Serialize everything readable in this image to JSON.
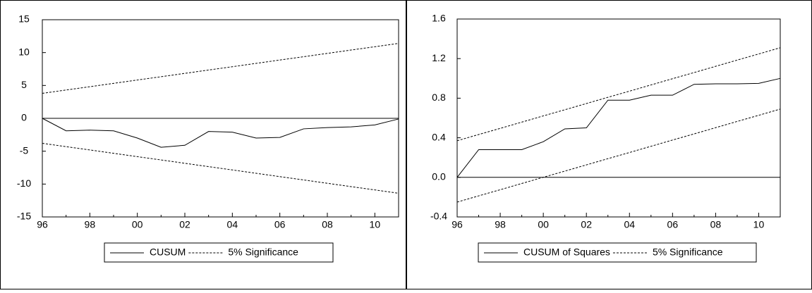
{
  "chart_data": [
    {
      "type": "line",
      "categories": [
        "96",
        null,
        "98",
        null,
        "00",
        null,
        "02",
        null,
        "04",
        null,
        "06",
        null,
        "08",
        null,
        "10",
        null
      ],
      "series": [
        {
          "name": "CUSUM",
          "color": "#000000",
          "style": "solid",
          "values": [
            0,
            -1.9,
            -1.8,
            -1.9,
            -3.0,
            -4.4,
            -4.1,
            -2.0,
            -2.1,
            -3.0,
            -2.9,
            -1.6,
            -1.4,
            -1.3,
            -1.0,
            -0.1
          ]
        },
        {
          "name": "5% Significance",
          "color": "#000000",
          "style": "dashed",
          "upper": [
            3.8,
            4.31,
            4.81,
            5.32,
            5.83,
            6.33,
            6.84,
            7.35,
            7.85,
            8.36,
            8.87,
            9.37,
            9.88,
            10.39,
            10.89,
            11.4
          ],
          "lower": [
            -3.8,
            -4.31,
            -4.81,
            -5.32,
            -5.83,
            -6.33,
            -6.84,
            -7.35,
            -7.85,
            -8.36,
            -8.87,
            -9.37,
            -9.88,
            -10.39,
            -10.89,
            -11.4
          ]
        }
      ],
      "ylim": [
        -15,
        15
      ],
      "yticks": [
        -15,
        -10,
        -5,
        0,
        5,
        10,
        15
      ],
      "reference_line": 0,
      "grid": false
    },
    {
      "type": "line",
      "categories": [
        "96",
        null,
        "98",
        null,
        "00",
        null,
        "02",
        null,
        "04",
        null,
        "06",
        null,
        "08",
        null,
        "10",
        null
      ],
      "series": [
        {
          "name": "CUSUM of Squares",
          "color": "#000000",
          "style": "solid",
          "values": [
            0,
            0.28,
            0.28,
            0.28,
            0.36,
            0.49,
            0.5,
            0.78,
            0.78,
            0.83,
            0.83,
            0.94,
            0.945,
            0.945,
            0.95,
            1.0
          ]
        },
        {
          "name": "5% Significance",
          "color": "#000000",
          "style": "dashed",
          "upper": [
            0.37,
            0.433,
            0.495,
            0.558,
            0.621,
            0.683,
            0.746,
            0.809,
            0.871,
            0.934,
            0.997,
            1.059,
            1.122,
            1.185,
            1.247,
            1.31
          ],
          "lower": [
            -0.25,
            -0.187,
            -0.125,
            -0.062,
            0.001,
            0.063,
            0.126,
            0.189,
            0.251,
            0.314,
            0.377,
            0.439,
            0.502,
            0.565,
            0.627,
            0.69
          ]
        }
      ],
      "ylim": [
        -0.4,
        1.6
      ],
      "yticks": [
        -0.4,
        {
          "value": 0,
          "label": "0.0"
        },
        0.4,
        0.8,
        1.2,
        1.6
      ],
      "reference_line": 0,
      "grid": false
    }
  ]
}
